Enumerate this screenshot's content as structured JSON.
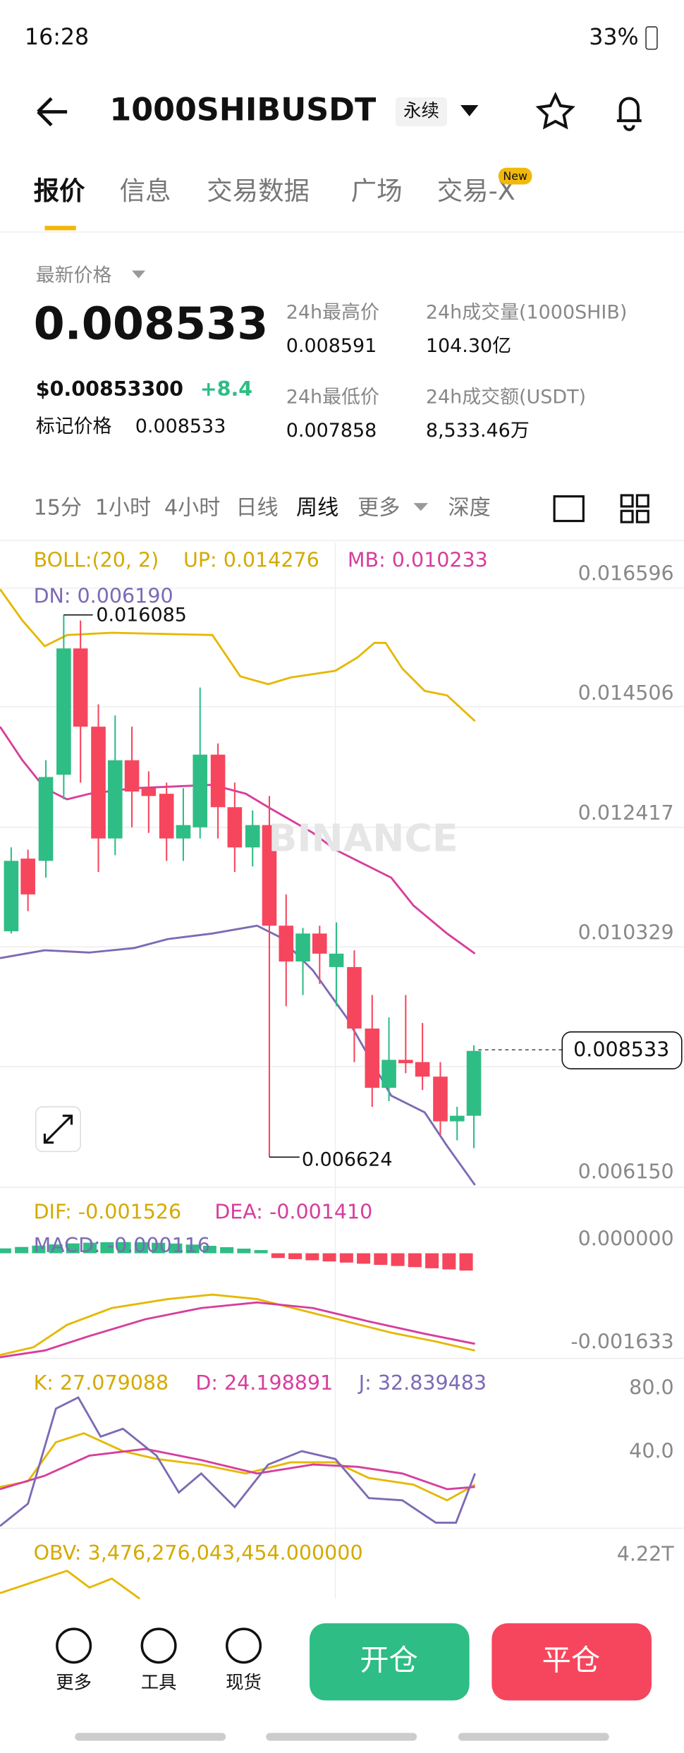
{
  "status_bar": {
    "time": "16:28",
    "battery": "33%"
  },
  "header": {
    "symbol": "1000SHIBUSDT",
    "tag": "永续"
  },
  "tabs": {
    "items": [
      "报价",
      "信息",
      "交易数据",
      "广场",
      "交易-X"
    ],
    "badge": "New"
  },
  "price": {
    "label": "最新价格",
    "last": "0.008533",
    "usd": "$0.00853300",
    "change": "+8.4",
    "mark_label": "标记价格",
    "mark": "0.008533"
  },
  "stats": [
    {
      "label": "24h最高价",
      "value": "0.008591"
    },
    {
      "label": "24h成交量(1000SHIB)",
      "value": "104.30亿"
    },
    {
      "label": "24h最低价",
      "value": "0.007858"
    },
    {
      "label": "24h成交额(USDT)",
      "value": "8,533.46万"
    }
  ],
  "intervals": [
    "15分",
    "1小时",
    "4小时",
    "日线",
    "周线",
    "更多",
    "深度"
  ],
  "main_chart": {
    "boll": "BOLL:(20, 2)",
    "up": "UP: 0.014276",
    "mb": "MB: 0.010233",
    "dn": "DN: 0.006190",
    "high_label": "0.016085",
    "low_label": "0.006624",
    "axis": [
      "0.016596",
      "0.014506",
      "0.012417",
      "0.010329",
      "0.006150"
    ],
    "current": "0.008533",
    "watermark": "BINANCE"
  },
  "macd": {
    "dif": "DIF: -0.001526",
    "dea": "DEA: -0.001410",
    "macd": "MACD: -0.000116",
    "axis": [
      "0.000000",
      "-0.001633"
    ]
  },
  "kdj": {
    "k": "K: 27.079088",
    "d": "D: 24.198891",
    "j": "J: 32.839483",
    "axis": [
      "80.0",
      "40.0"
    ]
  },
  "obv": {
    "label": "OBV: 3,476,276,043,454.000000",
    "axis": "4.22T"
  },
  "bottom": {
    "items": [
      "更多",
      "工具",
      "现货"
    ],
    "open": "开仓",
    "close": "平仓"
  }
}
